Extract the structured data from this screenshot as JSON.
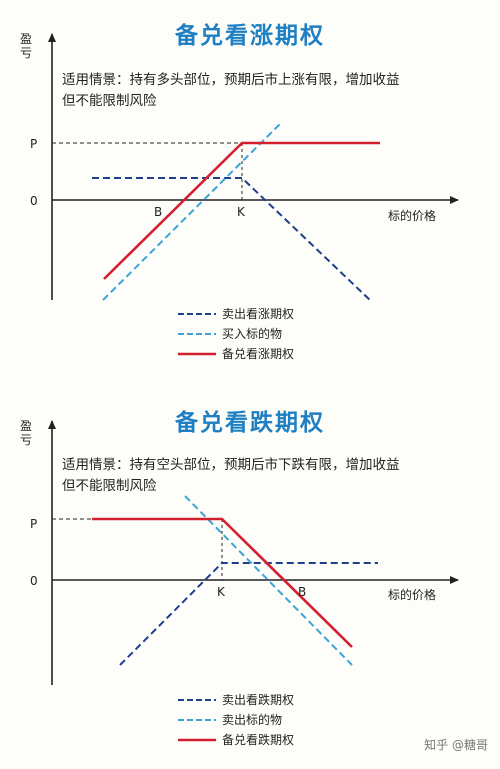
{
  "colors": {
    "title": "#1e7fc2",
    "short_option": "#1f3f8a",
    "underlying": "#3ba3d6",
    "combined": "#d41f2f",
    "axis": "#222222"
  },
  "panels": [
    {
      "title": "备兑看涨期权",
      "y_axis_label": "盈亏",
      "scenario_text": "适用情景：持有多头部位，预期后市上涨有限，增加收益但不能限制风险",
      "tick_labels": {
        "p": "P",
        "zero": "0",
        "b": "B",
        "k": "K"
      },
      "x_axis_label": "标的价格",
      "legend": [
        {
          "label": "卖出看涨期权",
          "style": "dashed",
          "color": "#1f3f8a"
        },
        {
          "label": "买入标的物",
          "style": "dashed",
          "color": "#3ba3d6"
        },
        {
          "label": "备兑看涨期权",
          "style": "solid",
          "color": "#d41f2f"
        }
      ]
    },
    {
      "title": "备兑看跌期权",
      "y_axis_label": "盈亏",
      "scenario_text": "适用情景：持有空头部位，预期后市下跌有限，增加收益但不能限制风险",
      "tick_labels": {
        "p": "P",
        "zero": "0",
        "b": "B",
        "k": "K"
      },
      "x_axis_label": "标的价格",
      "legend": [
        {
          "label": "卖出看跌期权",
          "style": "dashed",
          "color": "#1f3f8a"
        },
        {
          "label": "卖出标的物",
          "style": "dashed",
          "color": "#3ba3d6"
        },
        {
          "label": "备兑看跌期权",
          "style": "solid",
          "color": "#d41f2f"
        }
      ]
    }
  ],
  "watermark": "知乎 @糖哥"
}
